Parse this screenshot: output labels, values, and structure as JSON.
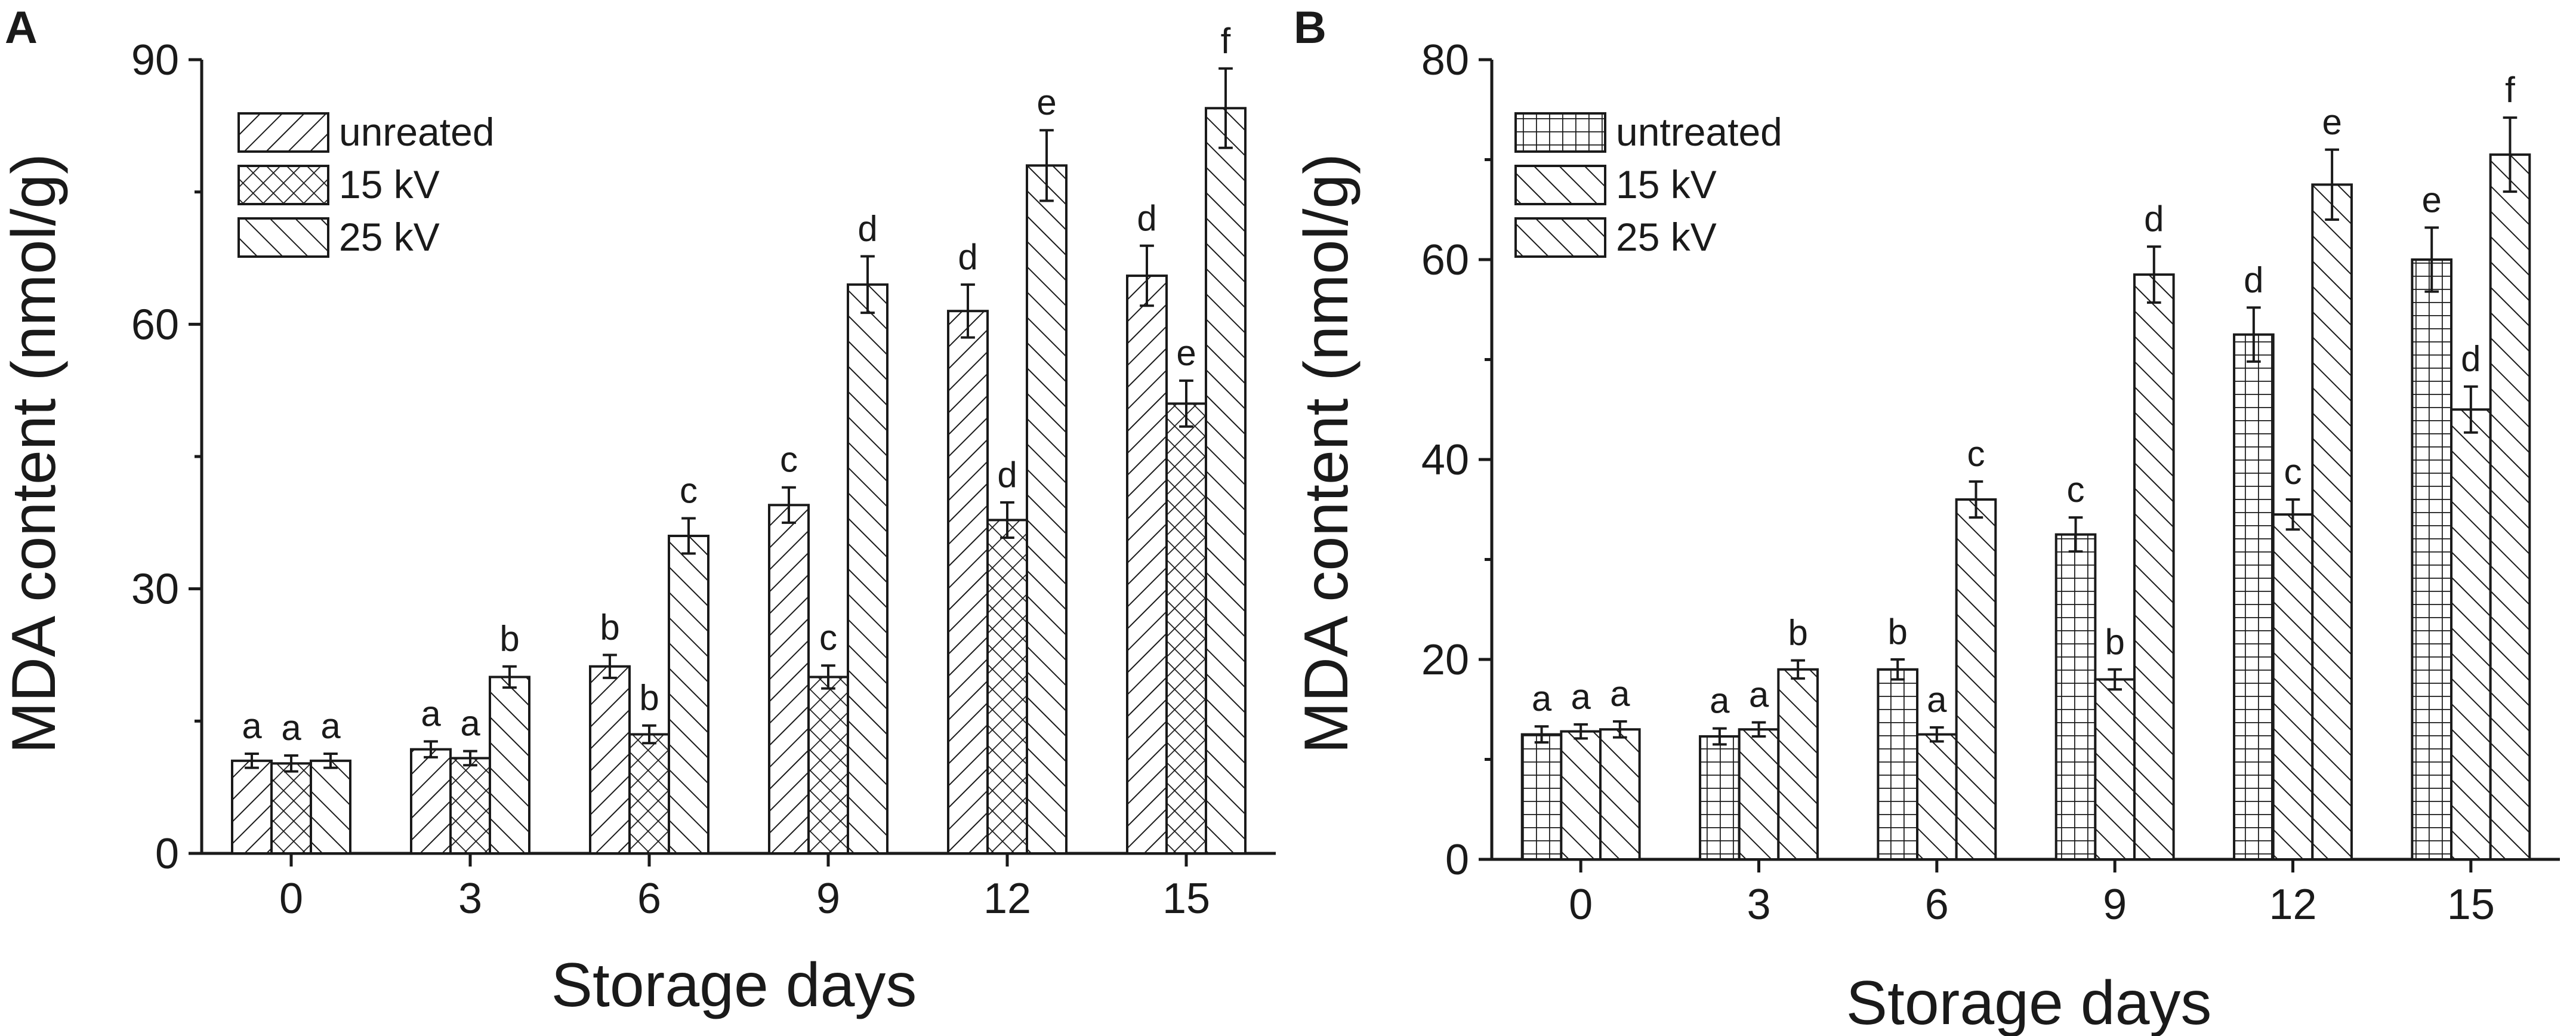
{
  "chart_data": [
    {
      "panel_label": "A",
      "type": "bar",
      "xlabel": "Storage days",
      "ylabel": "MDA content (nmol/g)",
      "ylim": [
        0,
        90
      ],
      "yticks": [
        "0",
        "30",
        "60",
        "90"
      ],
      "categories": [
        "0",
        "3",
        "6",
        "9",
        "12",
        "15"
      ],
      "legend_position": "top-left",
      "series": [
        {
          "name": "unreated",
          "pattern": "diagonal-right",
          "values": [
            10.5,
            11.8,
            21.2,
            39.5,
            61.5,
            65.5
          ],
          "errors": [
            0.8,
            0.9,
            1.3,
            2.0,
            3.0,
            3.4
          ],
          "letters": [
            "a",
            "a",
            "b",
            "c",
            "d",
            "d"
          ]
        },
        {
          "name": "15 kV",
          "pattern": "crosshatch",
          "values": [
            10.2,
            10.8,
            13.5,
            20.0,
            37.8,
            51.0
          ],
          "errors": [
            0.9,
            0.8,
            1.0,
            1.3,
            2.0,
            2.6
          ],
          "letters": [
            "a",
            "a",
            "b",
            "c",
            "d",
            "e"
          ]
        },
        {
          "name": "25 kV",
          "pattern": "diagonal-left",
          "values": [
            10.5,
            20.0,
            36.0,
            64.5,
            78.0,
            84.5
          ],
          "errors": [
            0.8,
            1.2,
            2.0,
            3.2,
            4.0,
            4.5
          ],
          "letters": [
            "a",
            "b",
            "c",
            "d",
            "e",
            "f"
          ]
        }
      ]
    },
    {
      "panel_label": "B",
      "type": "bar",
      "xlabel": "Storage days",
      "ylabel": "MDA content (nmol/g)",
      "ylim": [
        0,
        80
      ],
      "yticks": [
        "0",
        "20",
        "40",
        "60",
        "80"
      ],
      "categories": [
        "0",
        "3",
        "6",
        "9",
        "12",
        "15"
      ],
      "legend_position": "top-left",
      "series": [
        {
          "name": "untreated",
          "pattern": "grid",
          "values": [
            12.5,
            12.3,
            19.0,
            32.5,
            52.5,
            60.0
          ],
          "errors": [
            0.8,
            0.8,
            1.0,
            1.7,
            2.7,
            3.2
          ],
          "letters": [
            "a",
            "a",
            "b",
            "c",
            "d",
            "e"
          ]
        },
        {
          "name": "15 kV",
          "pattern": "diagonal-left",
          "values": [
            12.8,
            13.0,
            12.5,
            18.0,
            34.5,
            45.0
          ],
          "errors": [
            0.7,
            0.7,
            0.7,
            1.0,
            1.5,
            2.3
          ],
          "letters": [
            "a",
            "a",
            "a",
            "b",
            "c",
            "d"
          ]
        },
        {
          "name": "25 kV",
          "pattern": "diagonal-left",
          "values": [
            13.0,
            19.0,
            36.0,
            58.5,
            67.5,
            70.5
          ],
          "errors": [
            0.8,
            0.9,
            1.8,
            2.8,
            3.5,
            3.7
          ],
          "letters": [
            "a",
            "b",
            "c",
            "d",
            "e",
            "f"
          ]
        }
      ]
    }
  ]
}
